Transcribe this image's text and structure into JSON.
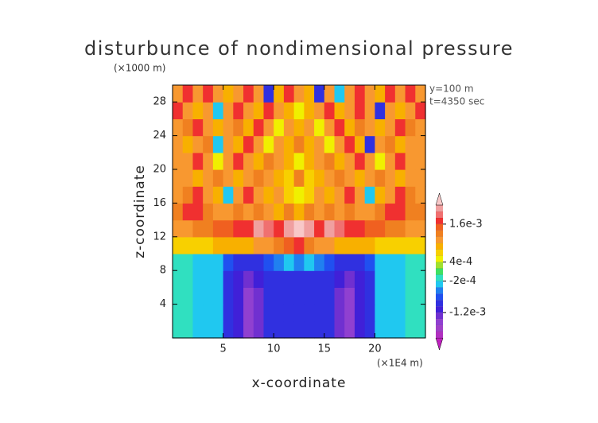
{
  "chart_data": {
    "type": "contour",
    "title": "disturbunce of nondimensional pressure",
    "y_unit": "(×1000 m)",
    "x_unit": "(×1E4 m)",
    "annotations": [
      "y=100 m",
      "t=4350 sec"
    ],
    "x_label": "x-coordinate",
    "y_label": "z-coordinate",
    "xlim": [
      0,
      25
    ],
    "ylim": [
      0,
      30
    ],
    "xticks": [
      5,
      10,
      15,
      20
    ],
    "yticks": [
      4,
      8,
      12,
      16,
      20,
      24,
      28
    ],
    "levels": [
      -0.002,
      -0.0018,
      -0.0016,
      -0.0014,
      -0.0012,
      -0.001,
      -0.0008,
      -0.0006,
      -0.0004,
      -0.0002,
      0,
      0.0002,
      0.0004,
      0.0006,
      0.0008,
      0.001,
      0.0012,
      0.0014,
      0.0016,
      0.0018,
      0.002,
      0.0022
    ],
    "colors": [
      "#c020c0",
      "#b030c0",
      "#a040c8",
      "#9040d0",
      "#7030d0",
      "#4020d8",
      "#3030e0",
      "#2050f0",
      "#2080f0",
      "#20c8f0",
      "#30e0c0",
      "#40e060",
      "#a0e030",
      "#f0f000",
      "#f8d000",
      "#f8b000",
      "#f89830",
      "#f08020",
      "#f06020",
      "#f03030",
      "#f07070",
      "#f0a0a0",
      "#f8c8c8"
    ],
    "colorbar_ticks": [
      {
        "value": -0.0012,
        "label": "-1.2e-3"
      },
      {
        "value": -0.0002,
        "label": "-2e-4"
      },
      {
        "value": 0.0004,
        "label": "4e-4"
      },
      {
        "value": 0.0016,
        "label": "1.6e-3"
      }
    ],
    "z": [
      [
        -0.0001,
        -0.0001,
        -0.0003,
        -0.0003,
        -0.0003,
        -0.0009,
        -0.0011,
        -0.0015,
        -0.0013,
        -0.001,
        -0.001,
        -0.001,
        -0.001,
        -0.001,
        -0.001,
        -0.001,
        -0.0013,
        -0.0015,
        -0.0011,
        -0.0009,
        -0.0003,
        -0.0003,
        -0.0003,
        -0.0001,
        -0.0001
      ],
      [
        -0.0001,
        -0.0001,
        -0.0003,
        -0.0003,
        -0.0003,
        -0.0009,
        -0.0011,
        -0.0015,
        -0.0013,
        -0.001,
        -0.001,
        -0.001,
        -0.001,
        -0.001,
        -0.001,
        -0.001,
        -0.0013,
        -0.0015,
        -0.0011,
        -0.0009,
        -0.0003,
        -0.0003,
        -0.0003,
        -0.0001,
        -0.0001
      ],
      [
        -0.0001,
        -0.0001,
        -0.0003,
        -0.0003,
        -0.0003,
        -0.0009,
        -0.0011,
        -0.0015,
        -0.0013,
        -0.001,
        -0.001,
        -0.001,
        -0.001,
        -0.001,
        -0.001,
        -0.001,
        -0.0013,
        -0.0015,
        -0.0011,
        -0.0009,
        -0.0003,
        -0.0003,
        -0.0003,
        -0.0001,
        -0.0001
      ],
      [
        -0.0001,
        -0.0001,
        -0.0003,
        -0.0003,
        -0.0003,
        -0.0009,
        -0.0011,
        -0.0013,
        -0.0011,
        -0.001,
        -0.0009,
        -0.001,
        -0.0009,
        -0.001,
        -0.0009,
        -0.001,
        -0.0011,
        -0.0013,
        -0.0011,
        -0.0009,
        -0.0003,
        -0.0003,
        -0.0003,
        -0.0001,
        -0.0001
      ],
      [
        -0.0001,
        -0.0001,
        -0.0003,
        -0.0003,
        -0.0003,
        -0.0007,
        -0.0009,
        -0.0009,
        -0.0009,
        -0.0007,
        -0.0005,
        -0.0003,
        -0.0005,
        -0.0003,
        -0.0005,
        -0.0007,
        -0.0009,
        -0.0009,
        -0.0009,
        -0.0007,
        -0.0003,
        -0.0003,
        -0.0003,
        -0.0001,
        -0.0001
      ],
      [
        0.0007,
        0.0007,
        0.0007,
        0.0007,
        0.0008,
        0.0008,
        0.0009,
        0.0009,
        0.001,
        0.0011,
        0.0013,
        0.0015,
        0.0017,
        0.0013,
        0.0011,
        0.001,
        0.0009,
        0.0009,
        0.0008,
        0.0008,
        0.0007,
        0.0007,
        0.0007,
        0.0007,
        0.0007
      ],
      [
        0.0011,
        0.0011,
        0.0012,
        0.0013,
        0.0014,
        0.0015,
        0.0017,
        0.0017,
        0.0021,
        0.0019,
        0.0017,
        0.0021,
        0.0023,
        0.0021,
        0.0017,
        0.0021,
        0.0019,
        0.0017,
        0.0017,
        0.0015,
        0.0014,
        0.0013,
        0.0012,
        0.0011,
        0.0011
      ],
      [
        0.0013,
        0.0017,
        0.0017,
        0.0013,
        0.0011,
        0.0011,
        0.0013,
        0.0011,
        0.0013,
        0.0011,
        0.0009,
        0.0013,
        0.0009,
        0.0013,
        0.0011,
        0.0013,
        0.0011,
        0.0013,
        0.0011,
        0.0011,
        0.0013,
        0.0017,
        0.0017,
        0.0013,
        0.0013
      ],
      [
        0.0011,
        0.0013,
        0.0017,
        0.0011,
        0.0009,
        -0.0003,
        0.0011,
        0.0017,
        0.0011,
        0.0009,
        0.0011,
        0.0007,
        0.0005,
        0.0007,
        0.0011,
        0.0009,
        0.0011,
        0.0017,
        0.0011,
        -0.0003,
        0.0009,
        0.0011,
        0.0017,
        0.0013,
        0.0011
      ],
      [
        0.0011,
        0.0011,
        0.0009,
        0.0011,
        0.0013,
        0.0011,
        0.0009,
        0.0011,
        0.0013,
        0.0011,
        0.0009,
        0.0007,
        0.0013,
        0.0007,
        0.0009,
        0.0011,
        0.0013,
        0.0011,
        0.0009,
        0.0011,
        0.0013,
        0.0011,
        0.0009,
        0.0011,
        0.0011
      ],
      [
        0.0011,
        0.0011,
        0.0017,
        0.0011,
        0.0005,
        0.0011,
        0.0017,
        0.0011,
        0.0009,
        0.0013,
        0.0011,
        0.0009,
        0.0005,
        0.0009,
        0.0011,
        0.0013,
        0.0009,
        0.0011,
        0.0017,
        0.0011,
        0.0005,
        0.0011,
        0.0017,
        0.0011,
        0.0011
      ],
      [
        0.0011,
        0.0009,
        0.0011,
        0.0013,
        -0.0003,
        0.0011,
        0.0009,
        0.0017,
        0.0011,
        0.0005,
        0.0011,
        0.0009,
        0.0013,
        0.0009,
        0.0011,
        0.0005,
        0.0011,
        0.0017,
        0.0009,
        -0.0009,
        0.0011,
        0.0013,
        0.0009,
        0.0011,
        0.0011
      ],
      [
        0.0011,
        0.0013,
        0.0017,
        0.0011,
        0.0009,
        0.0011,
        0.0013,
        0.0009,
        0.0017,
        0.0011,
        0.0005,
        0.0011,
        0.0009,
        0.0011,
        0.0005,
        0.0011,
        0.0017,
        0.0009,
        0.0013,
        0.0011,
        0.0009,
        0.0011,
        0.0017,
        0.0013,
        0.0011
      ],
      [
        0.0017,
        0.0011,
        0.0009,
        0.0011,
        -0.0003,
        0.0011,
        0.0017,
        0.0011,
        0.0009,
        0.0017,
        0.0011,
        0.0009,
        0.0005,
        0.0009,
        0.0011,
        0.0017,
        0.0009,
        0.0011,
        0.0017,
        0.0011,
        -0.0009,
        0.0011,
        0.0009,
        0.0011,
        0.0017
      ],
      [
        0.0011,
        0.0017,
        0.0011,
        0.0017,
        0.0011,
        0.0009,
        0.0011,
        0.0017,
        0.0011,
        -0.0009,
        0.0009,
        0.0017,
        0.0011,
        0.0009,
        -0.0009,
        0.0011,
        -0.0003,
        0.0011,
        0.0017,
        0.0011,
        0.0009,
        0.0017,
        0.0011,
        0.0017,
        0.0011
      ]
    ]
  }
}
